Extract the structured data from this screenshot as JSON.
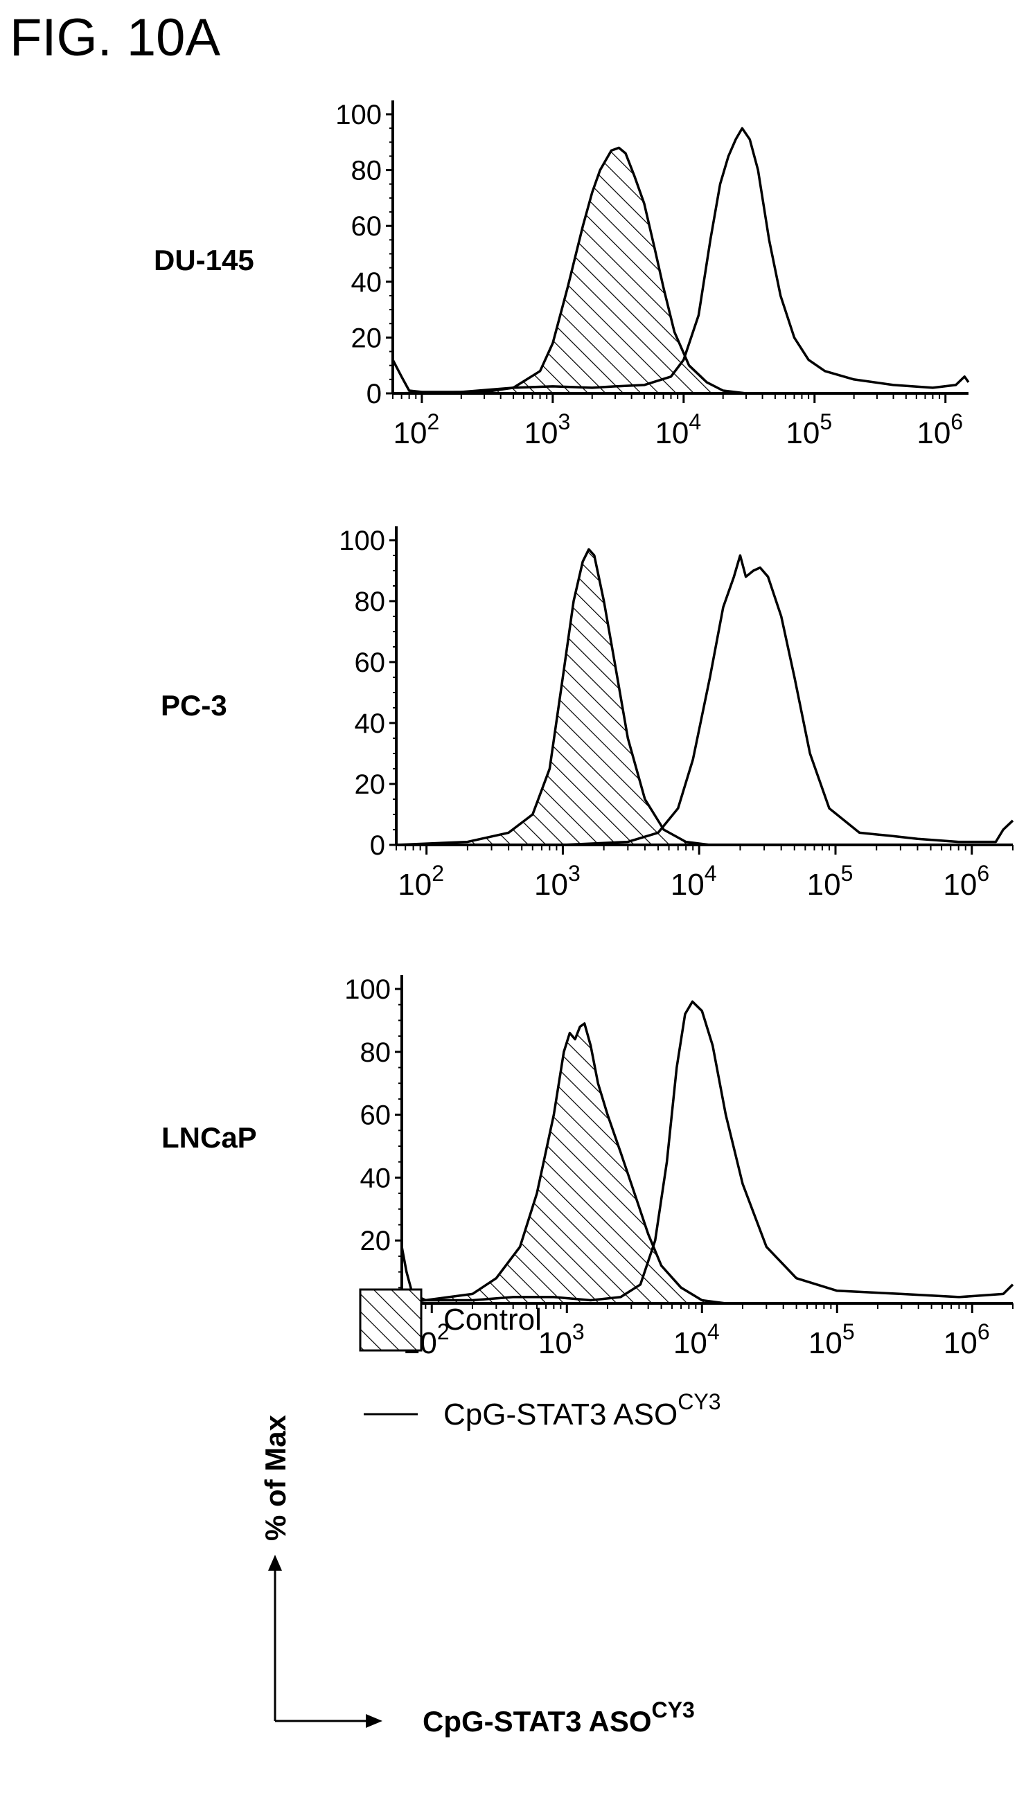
{
  "figure": {
    "title": "FIG. 10A",
    "legend": {
      "control_label": "Control",
      "treated_label_main": "CpG-STAT3 ASO",
      "treated_label_sup": "CY3"
    },
    "axis_key": {
      "y_caption": "% of Max",
      "x_caption_main": "CpG-STAT3 ASO",
      "x_caption_sup": "CY3"
    },
    "colors": {
      "ink": "#000000",
      "background": "#ffffff"
    }
  },
  "chart_data": [
    {
      "type": "area",
      "panel_label": "DU-145",
      "x_scale": "log",
      "xlim": [
        60,
        1500000
      ],
      "ylim": [
        0,
        100
      ],
      "y_ticks": [
        "0",
        "20",
        "40",
        "60",
        "80",
        "100"
      ],
      "x_ticks": [
        {
          "base": "10",
          "exp": "2"
        },
        {
          "base": "10",
          "exp": "3"
        },
        {
          "base": "10",
          "exp": "4"
        },
        {
          "base": "10",
          "exp": "5"
        },
        {
          "base": "10",
          "exp": "6"
        }
      ],
      "series": [
        {
          "key": "control",
          "fill": "hatched",
          "points": [
            [
              60,
              0
            ],
            [
              200,
              0.5
            ],
            [
              500,
              2
            ],
            [
              800,
              8
            ],
            [
              1000,
              18
            ],
            [
              1300,
              38
            ],
            [
              1700,
              60
            ],
            [
              2000,
              72
            ],
            [
              2300,
              80
            ],
            [
              2800,
              87
            ],
            [
              3200,
              88
            ],
            [
              3600,
              86
            ],
            [
              4200,
              78
            ],
            [
              5000,
              68
            ],
            [
              6000,
              52
            ],
            [
              7000,
              38
            ],
            [
              8500,
              22
            ],
            [
              11000,
              10
            ],
            [
              15000,
              4
            ],
            [
              20000,
              1
            ],
            [
              30000,
              0
            ]
          ]
        },
        {
          "key": "treated",
          "fill": "none",
          "points": [
            [
              60,
              12
            ],
            [
              70,
              6
            ],
            [
              80,
              1
            ],
            [
              100,
              0.5
            ],
            [
              300,
              0.5
            ],
            [
              500,
              2
            ],
            [
              1000,
              2.5
            ],
            [
              2000,
              2
            ],
            [
              3000,
              2.5
            ],
            [
              5000,
              3
            ],
            [
              8000,
              6
            ],
            [
              10000,
              12
            ],
            [
              13000,
              28
            ],
            [
              16000,
              55
            ],
            [
              19000,
              75
            ],
            [
              22000,
              85
            ],
            [
              25000,
              91
            ],
            [
              28000,
              95
            ],
            [
              32000,
              91
            ],
            [
              37000,
              80
            ],
            [
              45000,
              55
            ],
            [
              55000,
              35
            ],
            [
              70000,
              20
            ],
            [
              90000,
              12
            ],
            [
              120000,
              8
            ],
            [
              200000,
              5
            ],
            [
              400000,
              3
            ],
            [
              800000,
              2
            ],
            [
              1200000,
              3
            ],
            [
              1400000,
              6
            ],
            [
              1500000,
              4
            ]
          ]
        }
      ]
    },
    {
      "type": "area",
      "panel_label": "PC-3",
      "x_scale": "log",
      "xlim": [
        60,
        2000000
      ],
      "ylim": [
        0,
        100
      ],
      "y_ticks": [
        "0",
        "20",
        "40",
        "60",
        "80",
        "100"
      ],
      "x_ticks": [
        {
          "base": "10",
          "exp": "2"
        },
        {
          "base": "10",
          "exp": "3"
        },
        {
          "base": "10",
          "exp": "4"
        },
        {
          "base": "10",
          "exp": "5"
        },
        {
          "base": "10",
          "exp": "6"
        }
      ],
      "series": [
        {
          "key": "control",
          "fill": "hatched",
          "points": [
            [
              60,
              0
            ],
            [
              200,
              1
            ],
            [
              400,
              4
            ],
            [
              600,
              10
            ],
            [
              800,
              25
            ],
            [
              1000,
              55
            ],
            [
              1200,
              80
            ],
            [
              1400,
              93
            ],
            [
              1550,
              97
            ],
            [
              1700,
              95
            ],
            [
              2000,
              80
            ],
            [
              2400,
              60
            ],
            [
              3000,
              35
            ],
            [
              4000,
              15
            ],
            [
              5500,
              5
            ],
            [
              8000,
              1
            ],
            [
              12000,
              0
            ]
          ]
        },
        {
          "key": "treated",
          "fill": "none",
          "points": [
            [
              60,
              0
            ],
            [
              1000,
              0
            ],
            [
              3000,
              1
            ],
            [
              5000,
              4
            ],
            [
              7000,
              12
            ],
            [
              9000,
              28
            ],
            [
              12000,
              55
            ],
            [
              15000,
              78
            ],
            [
              18000,
              88
            ],
            [
              20000,
              95
            ],
            [
              22000,
              88
            ],
            [
              25000,
              90
            ],
            [
              28000,
              91
            ],
            [
              32000,
              88
            ],
            [
              40000,
              75
            ],
            [
              50000,
              55
            ],
            [
              65000,
              30
            ],
            [
              90000,
              12
            ],
            [
              150000,
              4
            ],
            [
              250000,
              3
            ],
            [
              400000,
              2
            ],
            [
              800000,
              1
            ],
            [
              1500000,
              1
            ],
            [
              1700000,
              5
            ],
            [
              2000000,
              8
            ]
          ]
        }
      ]
    },
    {
      "type": "area",
      "panel_label": "LNCaP",
      "x_scale": "log",
      "xlim": [
        60,
        2000000
      ],
      "ylim": [
        0,
        100
      ],
      "y_ticks": [
        "0",
        "20",
        "40",
        "60",
        "80",
        "100"
      ],
      "x_ticks": [
        {
          "base": "10",
          "exp": "2"
        },
        {
          "base": "10",
          "exp": "3"
        },
        {
          "base": "10",
          "exp": "4"
        },
        {
          "base": "10",
          "exp": "5"
        },
        {
          "base": "10",
          "exp": "6"
        }
      ],
      "series": [
        {
          "key": "control",
          "fill": "hatched",
          "points": [
            [
              60,
              0
            ],
            [
              200,
              3
            ],
            [
              300,
              8
            ],
            [
              450,
              18
            ],
            [
              600,
              35
            ],
            [
              800,
              60
            ],
            [
              950,
              80
            ],
            [
              1050,
              86
            ],
            [
              1150,
              84
            ],
            [
              1250,
              88
            ],
            [
              1350,
              89
            ],
            [
              1500,
              82
            ],
            [
              1700,
              70
            ],
            [
              2000,
              60
            ],
            [
              2500,
              48
            ],
            [
              3000,
              38
            ],
            [
              4000,
              22
            ],
            [
              5000,
              12
            ],
            [
              7000,
              5
            ],
            [
              10000,
              1
            ],
            [
              15000,
              0
            ]
          ]
        },
        {
          "key": "treated",
          "fill": "none",
          "points": [
            [
              60,
              18
            ],
            [
              65,
              10
            ],
            [
              72,
              3
            ],
            [
              90,
              1
            ],
            [
              200,
              1
            ],
            [
              400,
              2
            ],
            [
              800,
              2
            ],
            [
              1500,
              1
            ],
            [
              2500,
              2
            ],
            [
              3500,
              6
            ],
            [
              4500,
              20
            ],
            [
              5500,
              45
            ],
            [
              6500,
              75
            ],
            [
              7500,
              92
            ],
            [
              8500,
              96
            ],
            [
              10000,
              93
            ],
            [
              12000,
              82
            ],
            [
              15000,
              60
            ],
            [
              20000,
              38
            ],
            [
              30000,
              18
            ],
            [
              50000,
              8
            ],
            [
              100000,
              4
            ],
            [
              300000,
              3
            ],
            [
              800000,
              2
            ],
            [
              1700000,
              3
            ],
            [
              2000000,
              6
            ]
          ]
        }
      ]
    }
  ]
}
